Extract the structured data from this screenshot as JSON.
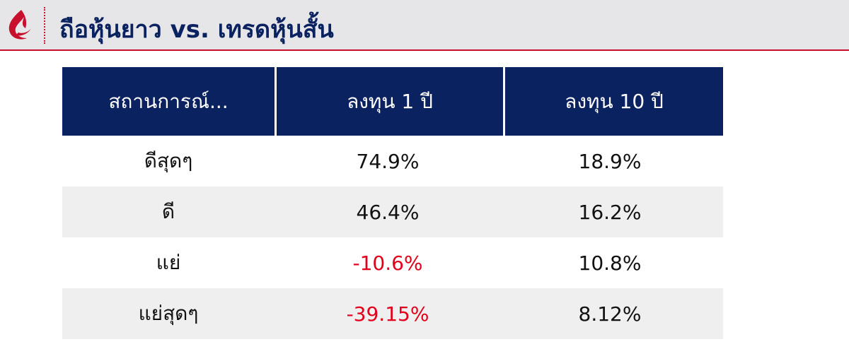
{
  "header": {
    "title": "ถือหุ้นยาว vs. เทรดหุ้นสั้น"
  },
  "table": {
    "columns": [
      "สถานการณ์...",
      "ลงทุน 1 ปี",
      "ลงทุน 10 ปี"
    ],
    "rows": [
      [
        "ดีสุดๆ",
        "74.9%",
        "18.9%"
      ],
      [
        "ดี",
        "46.4%",
        "16.2%"
      ],
      [
        "แย่",
        "-10.6%",
        "10.8%"
      ],
      [
        "แย่สุดๆ",
        "-39.15%",
        "8.12%"
      ]
    ]
  }
}
